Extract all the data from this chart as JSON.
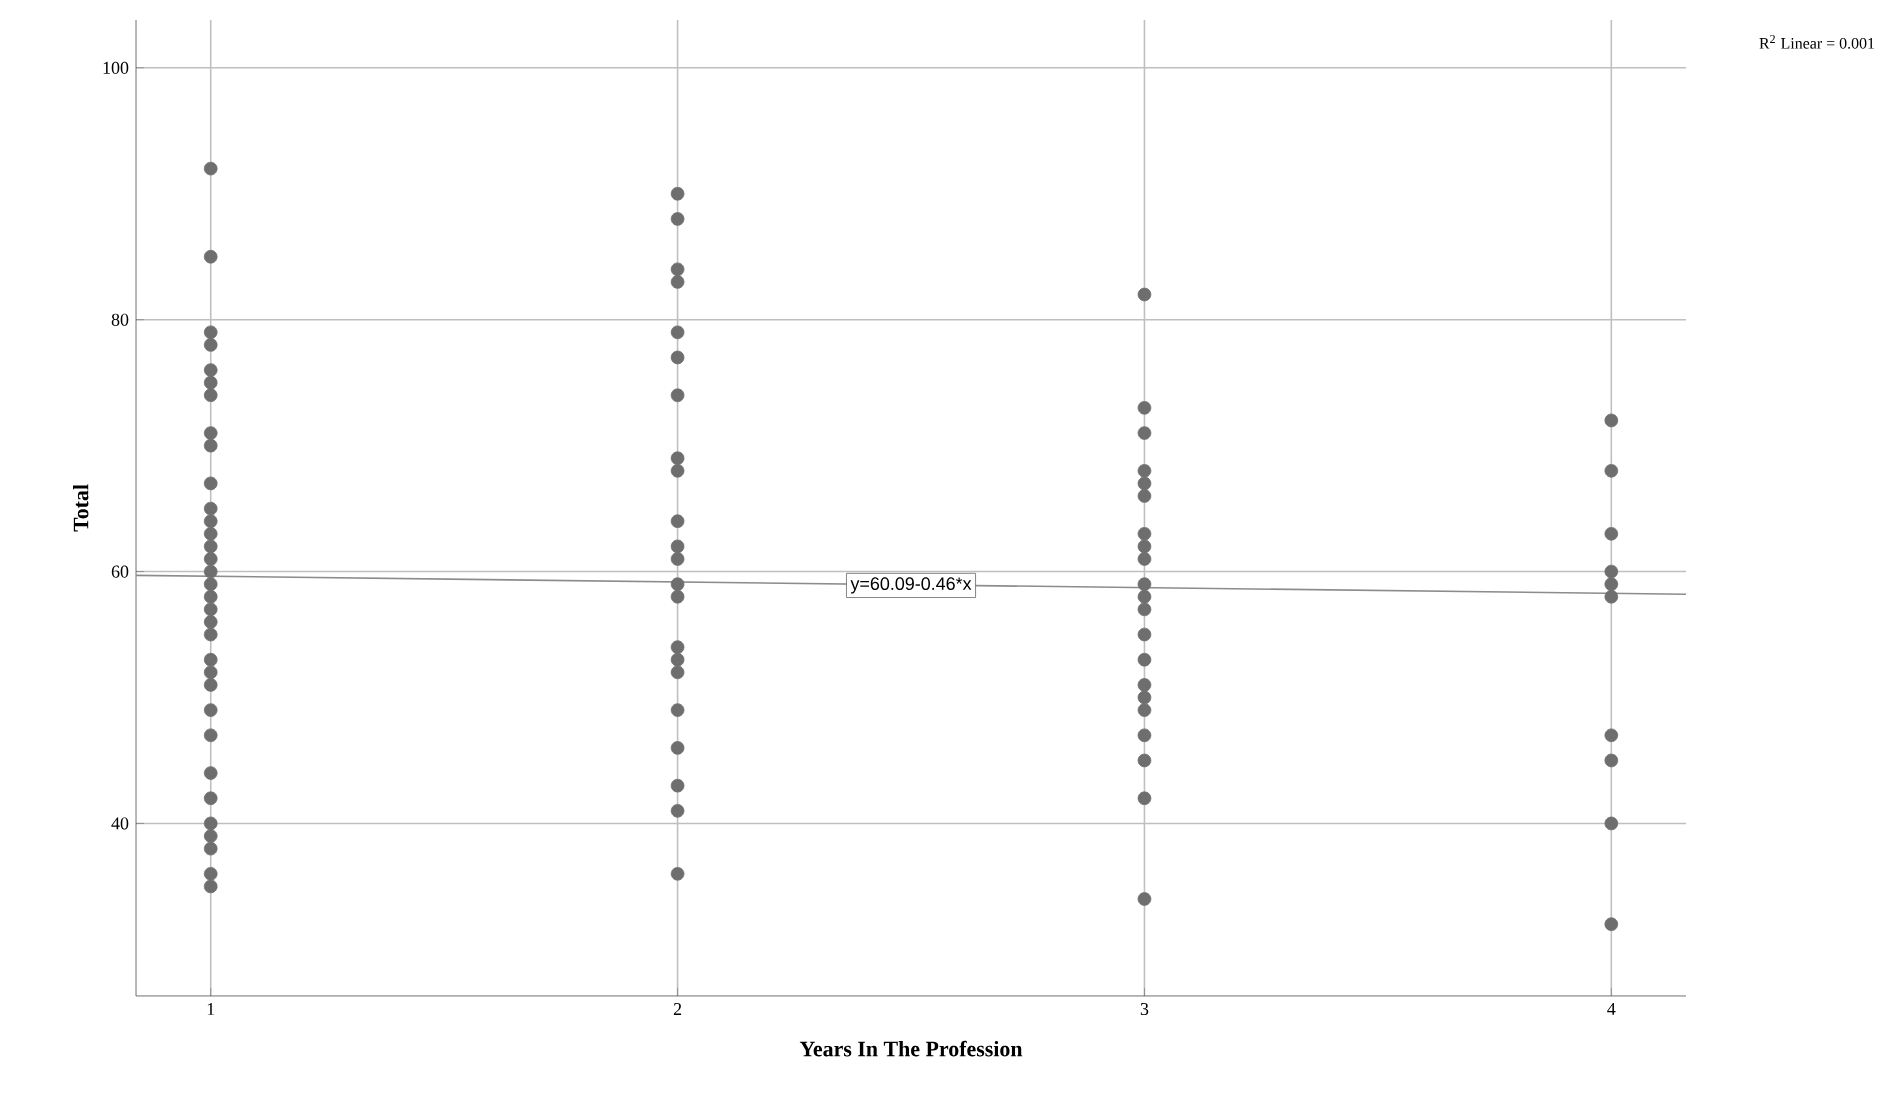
{
  "chart_data": {
    "type": "scatter",
    "xlabel": "Years In The Profession",
    "ylabel": "Total",
    "xlim": [
      0.84,
      4.16
    ],
    "ylim": [
      26.3,
      103.8
    ],
    "xticks": [
      1,
      2,
      3,
      4
    ],
    "yticks": [
      40,
      60,
      80,
      100
    ],
    "grid": true,
    "series": [
      {
        "marker": "circle",
        "color": "#6e6e6e",
        "x": [
          1,
          1,
          1,
          1,
          1,
          1,
          1,
          1,
          1,
          1,
          1,
          1,
          1,
          1,
          1,
          1,
          1,
          1,
          1,
          1,
          1,
          1,
          1,
          1,
          1,
          1,
          1,
          1,
          1,
          1,
          1,
          1,
          1,
          2,
          2,
          2,
          2,
          2,
          2,
          2,
          2,
          2,
          2,
          2,
          2,
          2,
          2,
          2,
          2,
          2,
          2,
          2,
          2,
          2,
          2,
          3,
          3,
          3,
          3,
          3,
          3,
          3,
          3,
          3,
          3,
          3,
          3,
          3,
          3,
          3,
          3,
          3,
          3,
          3,
          3,
          3,
          4,
          4,
          4,
          4,
          4,
          4,
          4,
          4,
          4,
          4
        ],
        "values": [
          92,
          85,
          79,
          78,
          76,
          75,
          74,
          71,
          70,
          67,
          65,
          64,
          63,
          62,
          61,
          60,
          59,
          58,
          57,
          56,
          55,
          53,
          52,
          51,
          49,
          47,
          44,
          42,
          40,
          39,
          38,
          36,
          35,
          90,
          88,
          84,
          83,
          79,
          77,
          74,
          69,
          68,
          64,
          62,
          61,
          59,
          58,
          54,
          53,
          52,
          49,
          46,
          43,
          41,
          36,
          82,
          73,
          71,
          68,
          67,
          66,
          63,
          62,
          61,
          59,
          58,
          57,
          55,
          53,
          51,
          50,
          49,
          47,
          45,
          42,
          34,
          72,
          68,
          63,
          60,
          59,
          58,
          47,
          45,
          40,
          32
        ]
      },
      {
        "type": "line",
        "marker": "none",
        "color": "#8c8c8c",
        "x": [
          0.84,
          4.16
        ],
        "values": [
          59.7,
          58.2
        ]
      }
    ],
    "annotations": [
      {
        "text": "y=60.09-0.46*x",
        "x": 2.5,
        "y": 58.9
      },
      "R$^{2}$ Linear = 0.001"
    ]
  }
}
